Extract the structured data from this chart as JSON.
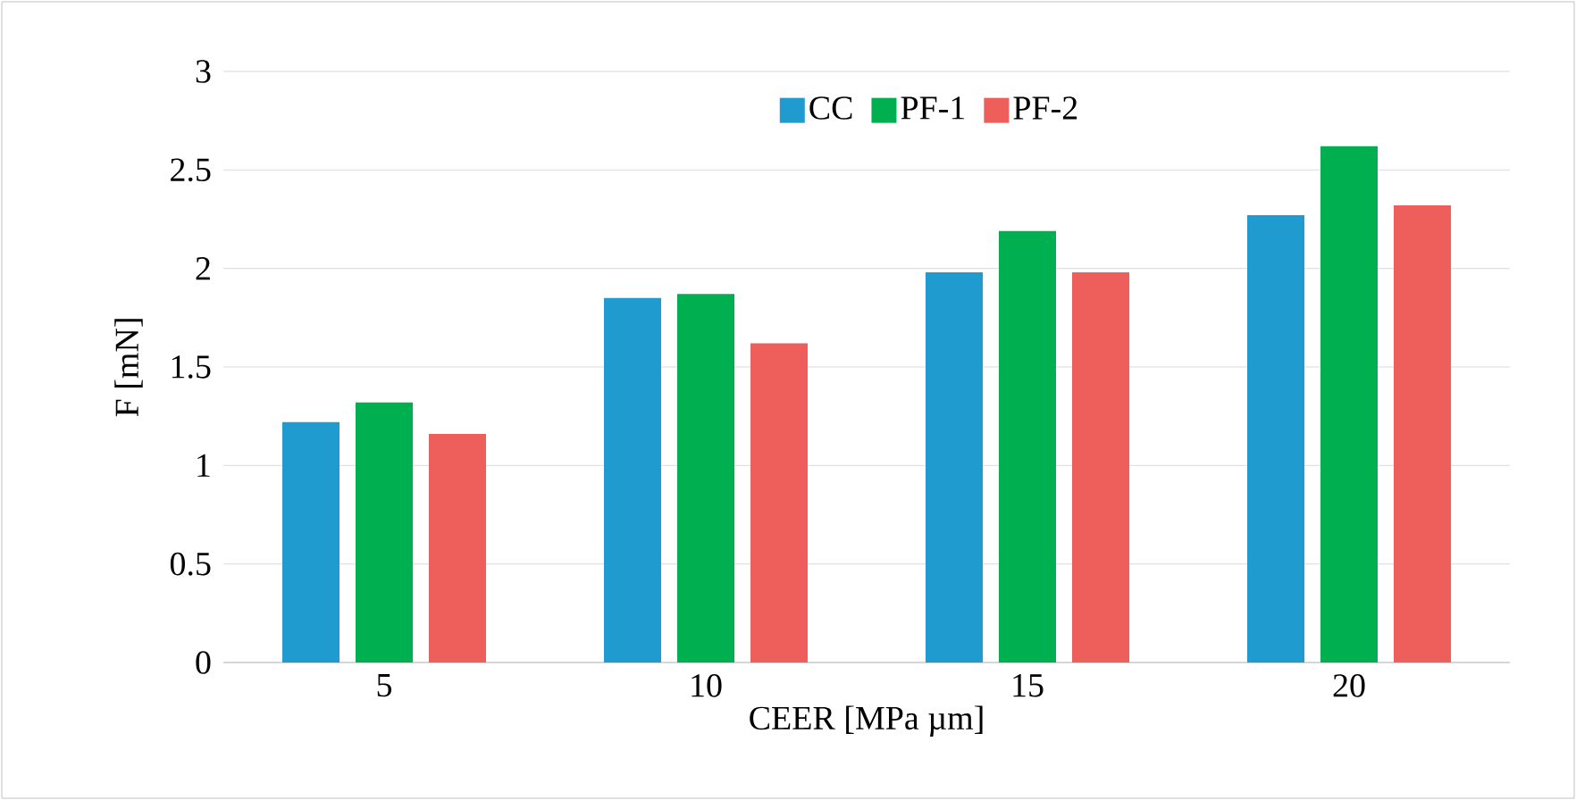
{
  "chart_data": {
    "type": "bar",
    "xlabel": "CEER [MPa µm]",
    "ylabel": "F [mN]",
    "categories": [
      "5",
      "10",
      "15",
      "20"
    ],
    "series": [
      {
        "name": "CC",
        "color": "#1f9bd0",
        "values": [
          1.22,
          1.85,
          1.98,
          2.27
        ]
      },
      {
        "name": "PF-1",
        "color": "#00b050",
        "values": [
          1.32,
          1.87,
          2.19,
          2.62
        ]
      },
      {
        "name": "PF-2",
        "color": "#ee5e5a",
        "values": [
          1.16,
          1.62,
          1.98,
          2.32
        ]
      }
    ],
    "ylim": [
      0,
      3
    ],
    "yticks": [
      0,
      0.5,
      1,
      1.5,
      2,
      2.5,
      3
    ],
    "grid": "y",
    "legend": "top"
  }
}
